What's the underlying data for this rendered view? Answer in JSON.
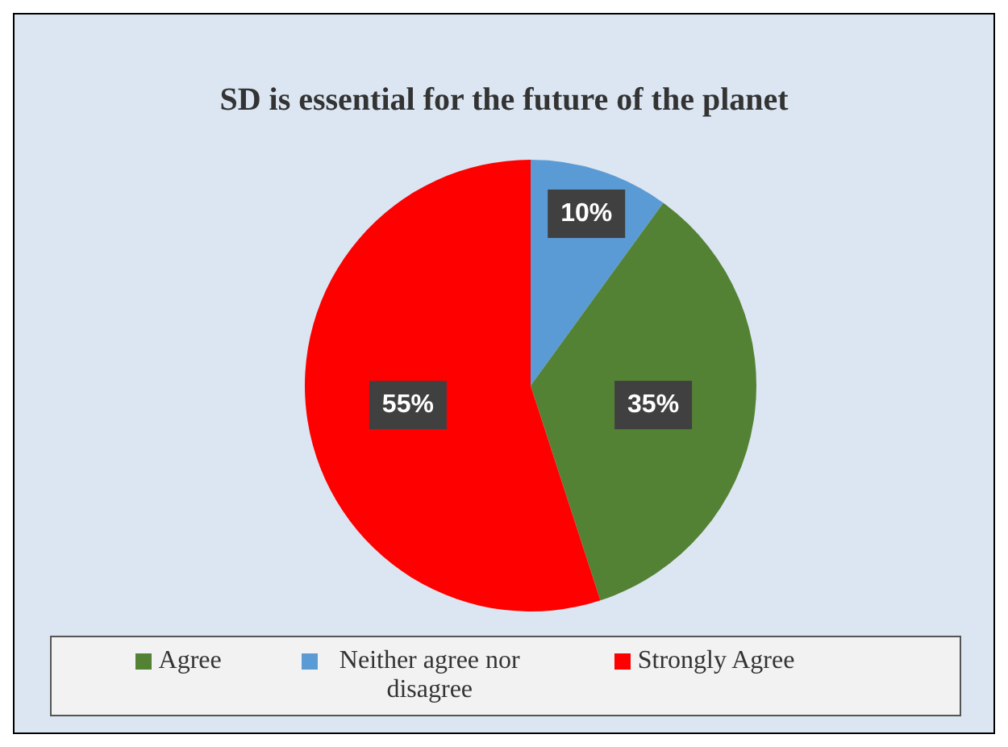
{
  "chart_data": {
    "type": "pie",
    "title": "SD is essential for the future of the planet",
    "categories": [
      "Neither agree nor disagree",
      "Agree",
      "Strongly Agree"
    ],
    "values": [
      10,
      35,
      55
    ],
    "colors": [
      "#5b9bd5",
      "#548235",
      "#ff0000"
    ],
    "value_labels": [
      "10%",
      "35%",
      "55%"
    ],
    "legend": "bottom"
  }
}
